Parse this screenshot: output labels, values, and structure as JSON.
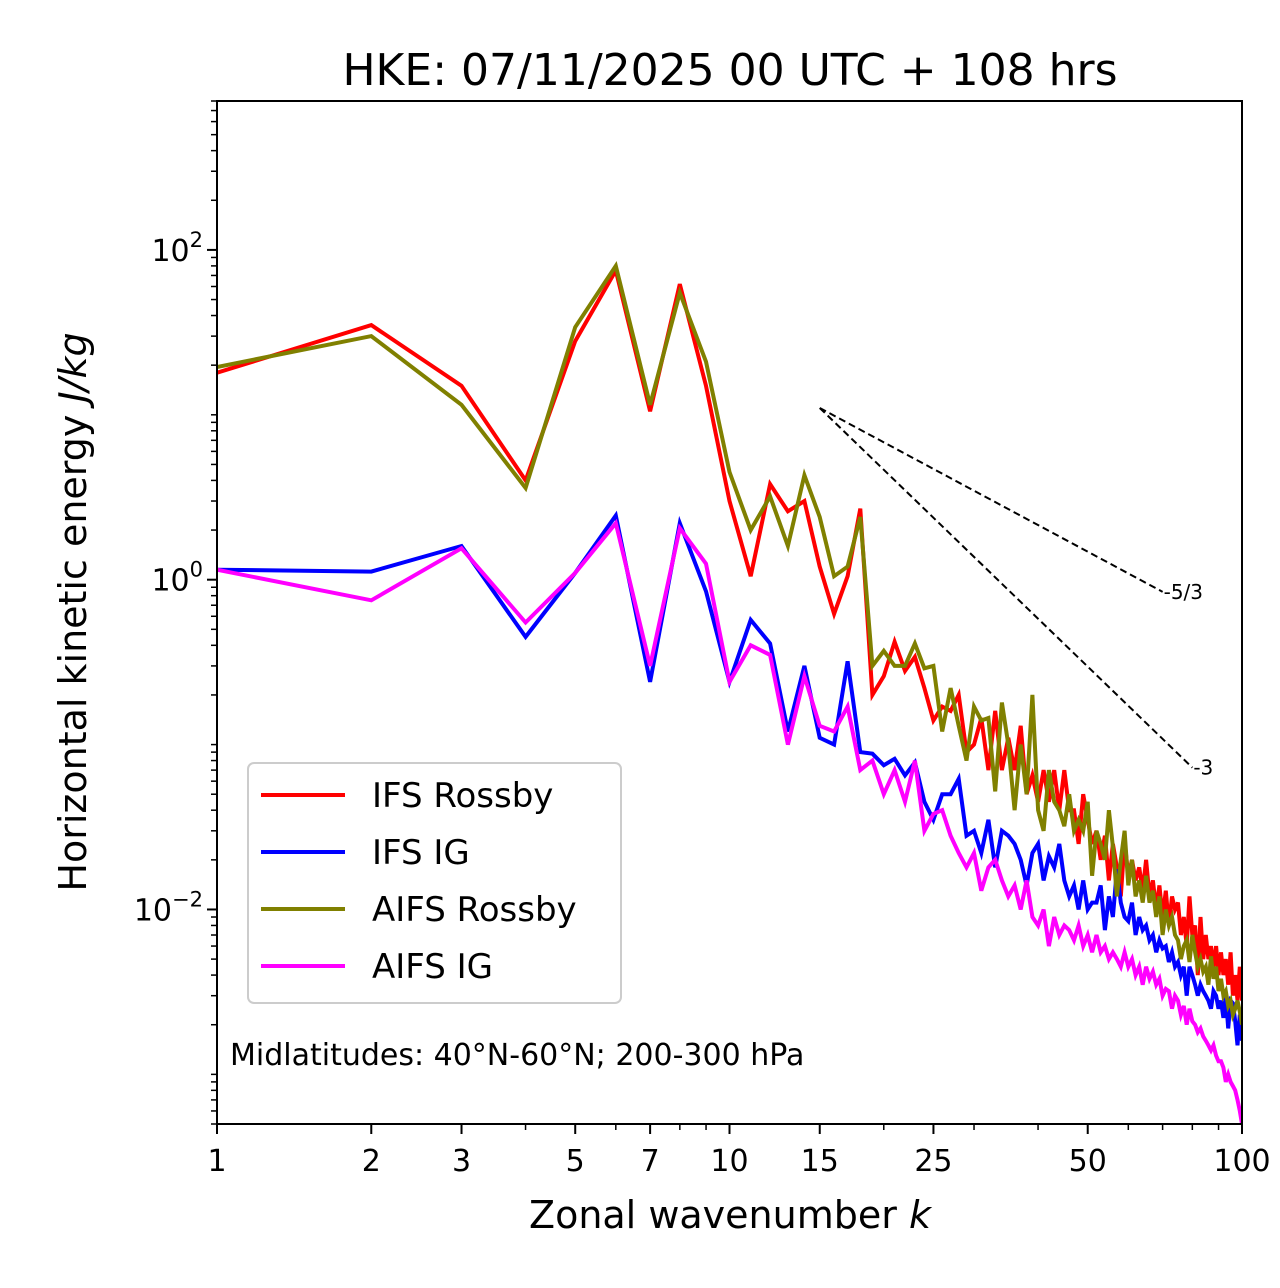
{
  "chart_data": {
    "type": "line",
    "title": "HKE: 07/11/2025 00 UTC + 108 hrs",
    "xlabel_prefix": "Zonal wavenumber ",
    "xlabel_var": "k",
    "ylabel_prefix": "Horizontal kinetic energy ",
    "ylabel_unit": "J/kg",
    "xscale": "log",
    "yscale": "log",
    "xlim": [
      1,
      100
    ],
    "ylim": [
      0.0005,
      800
    ],
    "x_ticks": [
      {
        "value": 1,
        "label": "1"
      },
      {
        "value": 2,
        "label": "2"
      },
      {
        "value": 3,
        "label": "3"
      },
      {
        "value": 5,
        "label": "5"
      },
      {
        "value": 7,
        "label": "7"
      },
      {
        "value": 10,
        "label": "10"
      },
      {
        "value": 15,
        "label": "15"
      },
      {
        "value": 25,
        "label": "25"
      },
      {
        "value": 50,
        "label": "50"
      },
      {
        "value": 100,
        "label": "100"
      }
    ],
    "y_ticks": [
      {
        "value": 100,
        "base": "10",
        "exp": "2"
      },
      {
        "value": 1,
        "base": "10",
        "exp": "0"
      },
      {
        "value": 0.01,
        "base": "10",
        "exp": "−2"
      }
    ],
    "annotation": "Midlatitudes: 40°N-60°N; 200-300 hPa",
    "reference_slopes": [
      {
        "label": "-5/3",
        "exponent": -1.6667,
        "x_start": 15,
        "y_start": 11,
        "x_end": 70
      },
      {
        "label": "-3",
        "exponent": -3,
        "x_start": 15,
        "y_start": 11,
        "x_end": 80
      }
    ],
    "series": [
      {
        "name": "IFS Rossby",
        "color": "#ff0000",
        "values": [
          18,
          35,
          15,
          4,
          28,
          75,
          10.5,
          62,
          15,
          3,
          1.05,
          3.8,
          2.6,
          3,
          1.2,
          0.62,
          1.05,
          2.7,
          0.2,
          0.26,
          0.42,
          0.28,
          0.34,
          0.22,
          0.14,
          0.17,
          0.16,
          0.2,
          0.09,
          0.1,
          0.145,
          0.07,
          0.16,
          0.07,
          0.11,
          0.07,
          0.13,
          0.05,
          0.065,
          0.045,
          0.07,
          0.045,
          0.07,
          0.04,
          0.07,
          0.04,
          0.04,
          0.025,
          0.05,
          0.035,
          0.025,
          0.03,
          0.02,
          0.028,
          0.015,
          0.025,
          0.018,
          0.012,
          0.026,
          0.016,
          0.02,
          0.015,
          0.018,
          0.013,
          0.02,
          0.012,
          0.015,
          0.01,
          0.014,
          0.009,
          0.013,
          0.008,
          0.012,
          0.01,
          0.011,
          0.007,
          0.009,
          0.006,
          0.012,
          0.007,
          0.008,
          0.004,
          0.009,
          0.005,
          0.007,
          0.005,
          0.006,
          0.0045,
          0.006,
          0.004,
          0.0055,
          0.004,
          0.005,
          0.0035,
          0.0055,
          0.003,
          0.004,
          0.0028,
          0.0045,
          0.0028
        ]
      },
      {
        "name": "IFS IG",
        "color": "#0000ff",
        "values": [
          1.15,
          1.12,
          1.6,
          0.45,
          1.1,
          2.45,
          0.24,
          2.2,
          0.85,
          0.24,
          0.57,
          0.41,
          0.12,
          0.3,
          0.11,
          0.1,
          0.32,
          0.09,
          0.088,
          0.075,
          0.082,
          0.065,
          0.078,
          0.045,
          0.035,
          0.05,
          0.05,
          0.062,
          0.028,
          0.03,
          0.022,
          0.035,
          0.018,
          0.03,
          0.028,
          0.025,
          0.02,
          0.014,
          0.022,
          0.025,
          0.015,
          0.021,
          0.018,
          0.025,
          0.015,
          0.012,
          0.014,
          0.01,
          0.015,
          0.01,
          0.011,
          0.011,
          0.014,
          0.0075,
          0.012,
          0.009,
          0.0175,
          0.011,
          0.009,
          0.0085,
          0.011,
          0.007,
          0.009,
          0.0075,
          0.008,
          0.0065,
          0.007,
          0.0055,
          0.0065,
          0.0058,
          0.006,
          0.0048,
          0.0055,
          0.0045,
          0.0048,
          0.004,
          0.0045,
          0.003,
          0.0045,
          0.004,
          0.0035,
          0.003,
          0.0035,
          0.0032,
          0.003,
          0.0028,
          0.0025,
          0.0032,
          0.003,
          0.0025,
          0.0028,
          0.0022,
          0.003,
          0.0019,
          0.0028,
          0.0027,
          0.0021,
          0.0015,
          0.0023,
          0.0016
        ]
      },
      {
        "name": "AIFS Rossby",
        "color": "#808000",
        "values": [
          19.5,
          30,
          11.5,
          3.6,
          34,
          80,
          11.5,
          55,
          21,
          4.5,
          2,
          3.2,
          1.6,
          4.3,
          2.4,
          1.05,
          1.2,
          2.4,
          0.3,
          0.37,
          0.3,
          0.3,
          0.41,
          0.29,
          0.3,
          0.12,
          0.22,
          0.13,
          0.08,
          0.17,
          0.14,
          0.145,
          0.052,
          0.18,
          0.1,
          0.04,
          0.1,
          0.05,
          0.2,
          0.04,
          0.03,
          0.07,
          0.045,
          0.04,
          0.032,
          0.05,
          0.03,
          0.035,
          0.03,
          0.045,
          0.016,
          0.03,
          0.025,
          0.02,
          0.04,
          0.024,
          0.012,
          0.02,
          0.03,
          0.014,
          0.02,
          0.012,
          0.015,
          0.011,
          0.016,
          0.011,
          0.013,
          0.009,
          0.012,
          0.007,
          0.01,
          0.008,
          0.009,
          0.007,
          0.0065,
          0.005,
          0.006,
          0.0065,
          0.0048,
          0.007,
          0.0055,
          0.0045,
          0.005,
          0.0042,
          0.0045,
          0.0035,
          0.0052,
          0.0038,
          0.0045,
          0.0032,
          0.0038,
          0.003,
          0.0032,
          0.0026,
          0.0028,
          0.0023,
          0.0025,
          0.0028,
          0.0024,
          0.002
        ]
      },
      {
        "name": "AIFS IG",
        "color": "#ff00ff",
        "values": [
          1.15,
          0.75,
          1.55,
          0.55,
          1.1,
          2.2,
          0.3,
          2.05,
          1.25,
          0.24,
          0.4,
          0.35,
          0.1,
          0.26,
          0.13,
          0.12,
          0.17,
          0.07,
          0.08,
          0.05,
          0.07,
          0.045,
          0.08,
          0.03,
          0.038,
          0.04,
          0.028,
          0.022,
          0.018,
          0.022,
          0.013,
          0.018,
          0.02,
          0.015,
          0.012,
          0.014,
          0.01,
          0.015,
          0.009,
          0.008,
          0.01,
          0.006,
          0.009,
          0.007,
          0.008,
          0.0075,
          0.0065,
          0.008,
          0.006,
          0.007,
          0.0055,
          0.007,
          0.0055,
          0.006,
          0.005,
          0.0055,
          0.005,
          0.0045,
          0.0055,
          0.0045,
          0.005,
          0.004,
          0.0045,
          0.0035,
          0.0045,
          0.0038,
          0.0042,
          0.0035,
          0.0038,
          0.003,
          0.0033,
          0.0032,
          0.0025,
          0.003,
          0.0028,
          0.0023,
          0.0026,
          0.002,
          0.0025,
          0.0021,
          0.002,
          0.0018,
          0.0019,
          0.0017,
          0.0016,
          0.0015,
          0.0014,
          0.0015,
          0.0013,
          0.0012,
          0.0012,
          0.0011,
          0.0009,
          0.001,
          0.0009,
          0.00085,
          0.0008,
          0.0007,
          0.0006,
          0.0005
        ]
      }
    ]
  }
}
